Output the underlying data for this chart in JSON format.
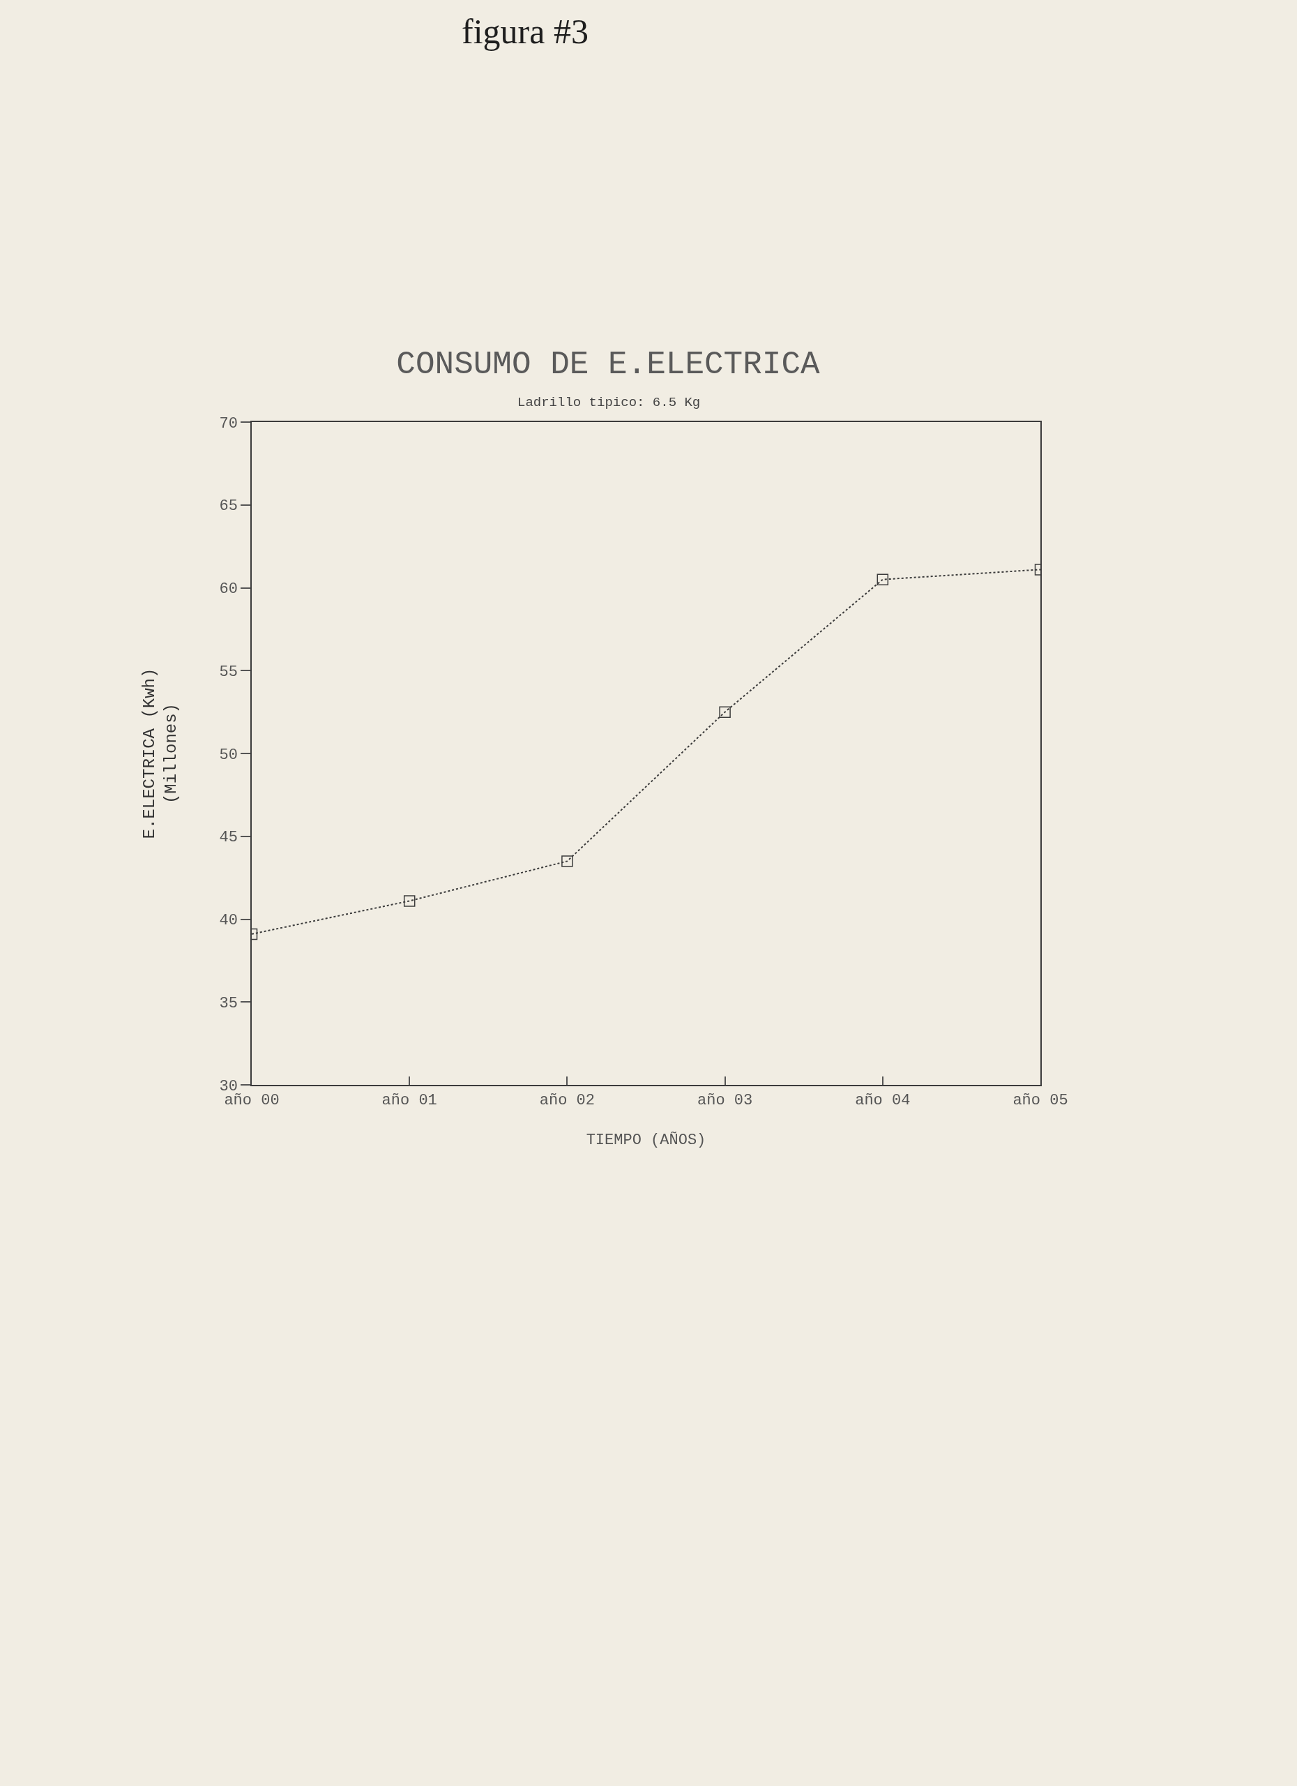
{
  "chart_data": {
    "type": "line",
    "title": "CONSUMO DE E.ELECTRICA",
    "subtitle": "Ladrillo tipico: 6.5 Kg",
    "xlabel": "TIEMPO (AÑOS)",
    "ylabel": "E.ELECTRICA (Kwh)\n(Millones)",
    "annotations": [
      "figura #3"
    ],
    "categories": [
      "año 00",
      "año 01",
      "año 02",
      "año 03",
      "año 04",
      "año 05"
    ],
    "series": [
      {
        "color": "#3c3c3c",
        "values": [
          39.1,
          41.1,
          43.5,
          52.5,
          60.5,
          61.1
        ]
      }
    ],
    "ylim": [
      30,
      70
    ],
    "yticks": [
      30,
      35,
      40,
      45,
      50,
      55,
      60,
      65,
      70
    ],
    "marker": "square",
    "line_style": "dotted"
  }
}
